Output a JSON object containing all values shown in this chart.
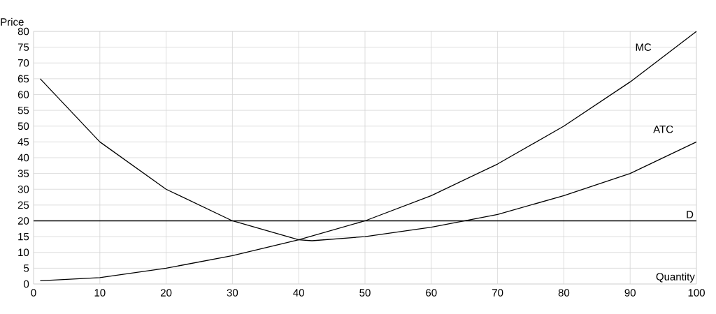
{
  "chart_data": {
    "type": "line",
    "xlabel": "Quantity",
    "ylabel": "Price",
    "xlim": [
      0,
      100
    ],
    "xticks": [
      0,
      10,
      20,
      30,
      40,
      50,
      60,
      70,
      80,
      90,
      100
    ],
    "ylim": [
      0,
      80
    ],
    "yticks": [
      0,
      5,
      10,
      15,
      20,
      25,
      30,
      35,
      40,
      45,
      50,
      55,
      60,
      65,
      70,
      75,
      80
    ],
    "grid": true,
    "legend": false,
    "marker": "none",
    "line_style": "solid",
    "series": [
      {
        "name": "MC",
        "color": "#000000",
        "x": [
          1,
          10,
          20,
          30,
          40,
          50,
          60,
          70,
          80,
          90,
          100
        ],
        "values": [
          1,
          2,
          5,
          9,
          14,
          20,
          28,
          38,
          50,
          64,
          80
        ]
      },
      {
        "name": "ATC",
        "color": "#000000",
        "x": [
          1,
          10,
          20,
          30,
          40,
          42,
          50,
          60,
          65,
          70,
          80,
          90,
          100
        ],
        "values": [
          65,
          45,
          30,
          20,
          14,
          13.7,
          15,
          18,
          20,
          22,
          28,
          35,
          45
        ]
      },
      {
        "name": "D",
        "color": "#000000",
        "x": [
          0,
          100
        ],
        "values": [
          20,
          20
        ]
      }
    ]
  }
}
